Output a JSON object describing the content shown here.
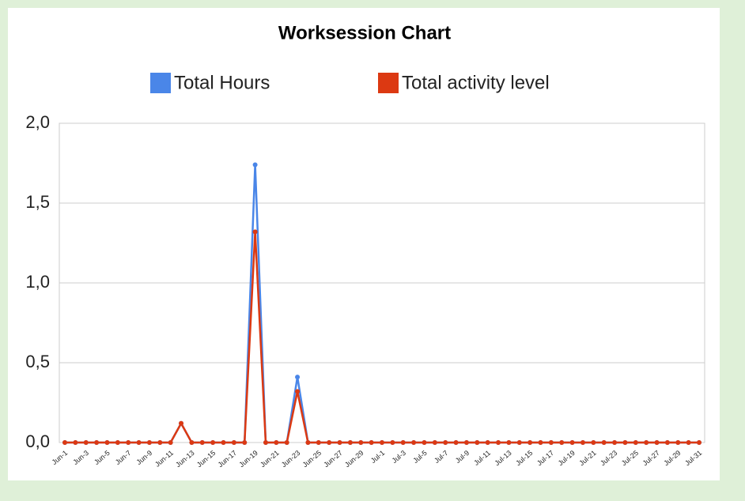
{
  "chart_data": {
    "type": "line",
    "title": "Worksession Chart",
    "categories": [
      "Jun-1",
      null,
      "Jun-3",
      null,
      "Jun-5",
      null,
      "Jun-7",
      null,
      "Jun-9",
      null,
      "Jun-11",
      null,
      "Jun-13",
      null,
      "Jun-15",
      null,
      "Jun-17",
      null,
      "Jun-19",
      null,
      "Jun-21",
      null,
      "Jun-23",
      null,
      "Jun-25",
      null,
      "Jun-27",
      null,
      "Jun-29",
      null,
      "Jul-1",
      null,
      "Jul-3",
      null,
      "Jul-5",
      null,
      "Jul-7",
      null,
      "Jul-9",
      null,
      "Jul-11",
      null,
      "Jul-13",
      null,
      "Jul-15",
      null,
      "Jul-17",
      null,
      "Jul-19",
      null,
      "Jul-21",
      null,
      "Jul-23",
      null,
      "Jul-25",
      null,
      "Jul-27",
      null,
      "Jul-29",
      null,
      "Jul-31"
    ],
    "series": [
      {
        "name": "Total Hours",
        "color": "#4a86e8",
        "values": [
          0,
          0,
          0,
          0,
          0,
          0,
          0,
          0,
          0,
          0,
          0,
          0.12,
          0,
          0,
          0,
          0,
          0,
          0,
          1.74,
          0,
          0,
          0,
          0.41,
          0,
          0,
          0,
          0,
          0,
          0,
          0,
          0,
          0,
          0,
          0,
          0,
          0,
          0,
          0,
          0,
          0,
          0,
          0,
          0,
          0,
          0,
          0,
          0,
          0,
          0,
          0,
          0,
          0,
          0,
          0,
          0,
          0,
          0,
          0,
          0,
          0,
          0
        ]
      },
      {
        "name": "Total activity level",
        "color": "#dc3912",
        "values": [
          0,
          0,
          0,
          0,
          0,
          0,
          0,
          0,
          0,
          0,
          0,
          0.12,
          0,
          0,
          0,
          0,
          0,
          0,
          1.32,
          0,
          0,
          0,
          0.32,
          0,
          0,
          0,
          0,
          0,
          0,
          0,
          0,
          0,
          0,
          0,
          0,
          0,
          0,
          0,
          0,
          0,
          0,
          0,
          0,
          0,
          0,
          0,
          0,
          0,
          0,
          0,
          0,
          0,
          0,
          0,
          0,
          0,
          0,
          0,
          0,
          0,
          0
        ]
      }
    ],
    "ylim": [
      0,
      2
    ],
    "yticks": [
      {
        "value": 0,
        "label": "0,0"
      },
      {
        "value": 0.5,
        "label": "0,5"
      },
      {
        "value": 1,
        "label": "1,0"
      },
      {
        "value": 1.5,
        "label": "1,5"
      },
      {
        "value": 2,
        "label": "2,0"
      }
    ],
    "grid": true
  }
}
